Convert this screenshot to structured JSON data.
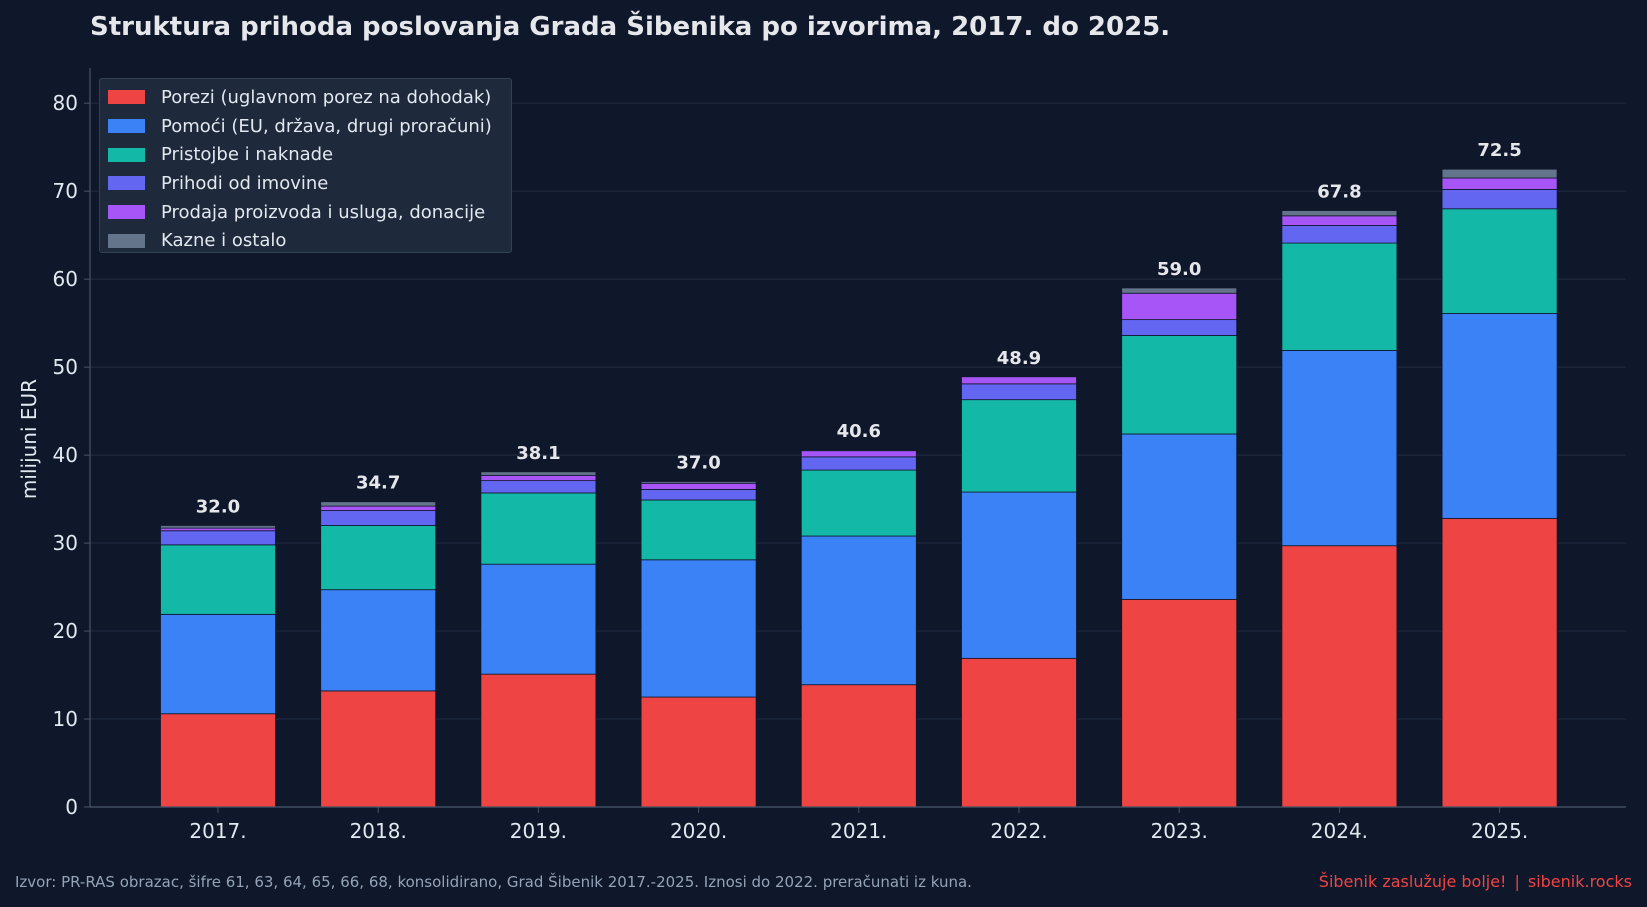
{
  "chart_data": {
    "type": "bar",
    "stacked": true,
    "title": "Struktura prihoda poslovanja Grada Šibenika po izvorima, 2017. do 2025.",
    "xlabel": "",
    "ylabel": "milijuni EUR",
    "ylim": [
      0,
      84
    ],
    "yticks": [
      0,
      10,
      20,
      30,
      40,
      50,
      60,
      70,
      80
    ],
    "grid": true,
    "legend_position": "top-left",
    "categories": [
      "2017.",
      "2018.",
      "2019.",
      "2020.",
      "2021.",
      "2022.",
      "2023.",
      "2024.",
      "2025."
    ],
    "totals": [
      "32.0",
      "34.7",
      "38.1",
      "37.0",
      "40.6",
      "48.9",
      "59.0",
      "67.8",
      "72.5"
    ],
    "series": [
      {
        "name": "Porezi (uglavnom porez na dohodak)",
        "color": "#ef4444",
        "values": [
          10.6,
          13.2,
          15.1,
          12.5,
          13.9,
          16.9,
          23.6,
          29.7,
          32.8
        ]
      },
      {
        "name": "Pomoći (EU, država, drugi proračuni)",
        "color": "#3b82f6",
        "values": [
          11.3,
          11.5,
          12.5,
          15.6,
          16.9,
          18.9,
          18.8,
          22.2,
          23.3
        ]
      },
      {
        "name": "Pristojbe i naknade",
        "color": "#14b8a6",
        "values": [
          7.9,
          7.3,
          8.1,
          6.8,
          7.5,
          10.5,
          11.2,
          12.2,
          11.9
        ]
      },
      {
        "name": "Prihodi od imovine",
        "color": "#6366f1",
        "values": [
          1.6,
          1.7,
          1.4,
          1.2,
          1.5,
          1.8,
          1.8,
          2.0,
          2.2
        ]
      },
      {
        "name": "Prodaja proizvoda i usluga, donacije",
        "color": "#a855f7",
        "values": [
          0.3,
          0.5,
          0.6,
          0.7,
          0.7,
          0.8,
          3.0,
          1.1,
          1.3
        ]
      },
      {
        "name": "Kazne i ostalo",
        "color": "#64748b",
        "values": [
          0.3,
          0.5,
          0.4,
          0.2,
          0.1,
          0.0,
          0.6,
          0.6,
          1.0
        ]
      }
    ]
  },
  "footer": {
    "source": "Izvor: PR-RAS obrazac, šifre 61, 63, 64, 65, 66, 68, konsolidirano, Grad Šibenik 2017.-2025. Iznosi do 2022. preračunati iz kuna.",
    "brand": "Šibenik zaslužuje bolje!",
    "separator": "|",
    "site": "sibenik.rocks"
  }
}
